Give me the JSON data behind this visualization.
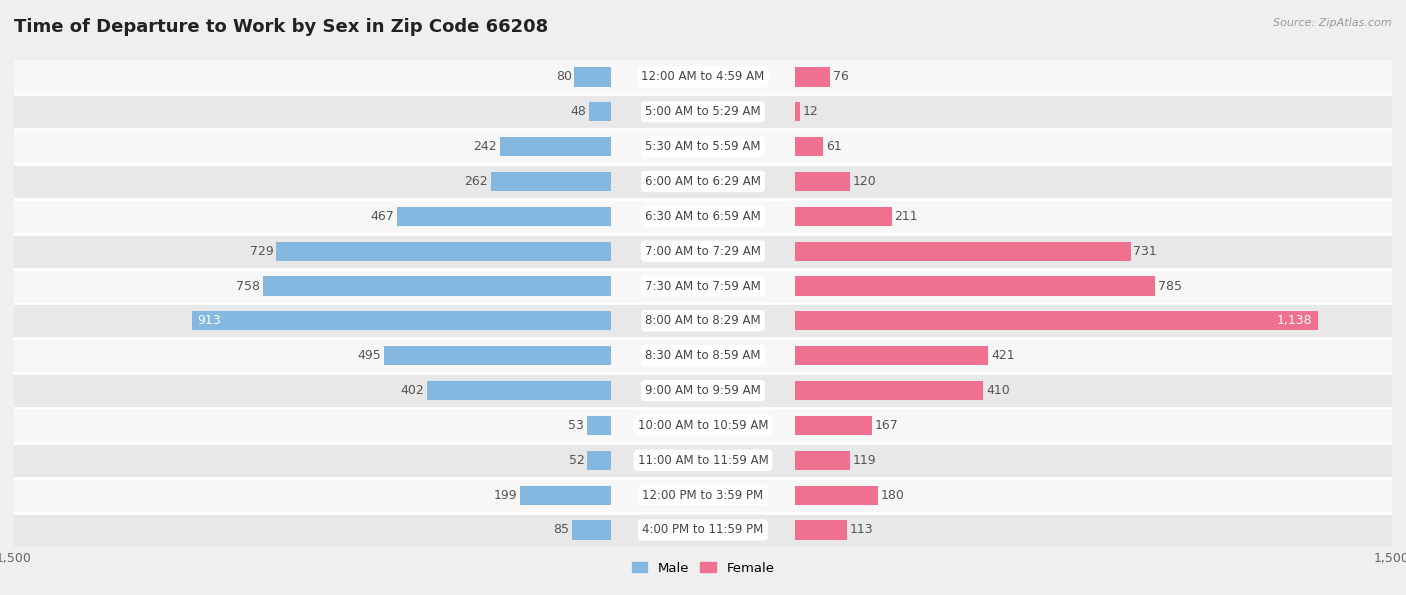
{
  "title": "Time of Departure to Work by Sex in Zip Code 66208",
  "source": "Source: ZipAtlas.com",
  "categories": [
    "12:00 AM to 4:59 AM",
    "5:00 AM to 5:29 AM",
    "5:30 AM to 5:59 AM",
    "6:00 AM to 6:29 AM",
    "6:30 AM to 6:59 AM",
    "7:00 AM to 7:29 AM",
    "7:30 AM to 7:59 AM",
    "8:00 AM to 8:29 AM",
    "8:30 AM to 8:59 AM",
    "9:00 AM to 9:59 AM",
    "10:00 AM to 10:59 AM",
    "11:00 AM to 11:59 AM",
    "12:00 PM to 3:59 PM",
    "4:00 PM to 11:59 PM"
  ],
  "male": [
    80,
    48,
    242,
    262,
    467,
    729,
    758,
    913,
    495,
    402,
    53,
    52,
    199,
    85
  ],
  "female": [
    76,
    12,
    61,
    120,
    211,
    731,
    785,
    1138,
    421,
    410,
    167,
    119,
    180,
    113
  ],
  "male_color": "#85b8e0",
  "female_color": "#f07090",
  "bg_color": "#efefef",
  "row_color_light": "#f7f7f7",
  "row_color_dark": "#e8e8e8",
  "label_color_outside": "#555555",
  "label_color_inside": "#ffffff",
  "center_box_color": "#ffffff",
  "center_text_color": "#444444",
  "xlim": 1500,
  "bar_height": 0.55,
  "legend_male": "Male",
  "legend_female": "Female",
  "title_fontsize": 13,
  "label_fontsize": 9,
  "category_fontsize": 8.5,
  "tick_fontsize": 9,
  "source_fontsize": 8
}
